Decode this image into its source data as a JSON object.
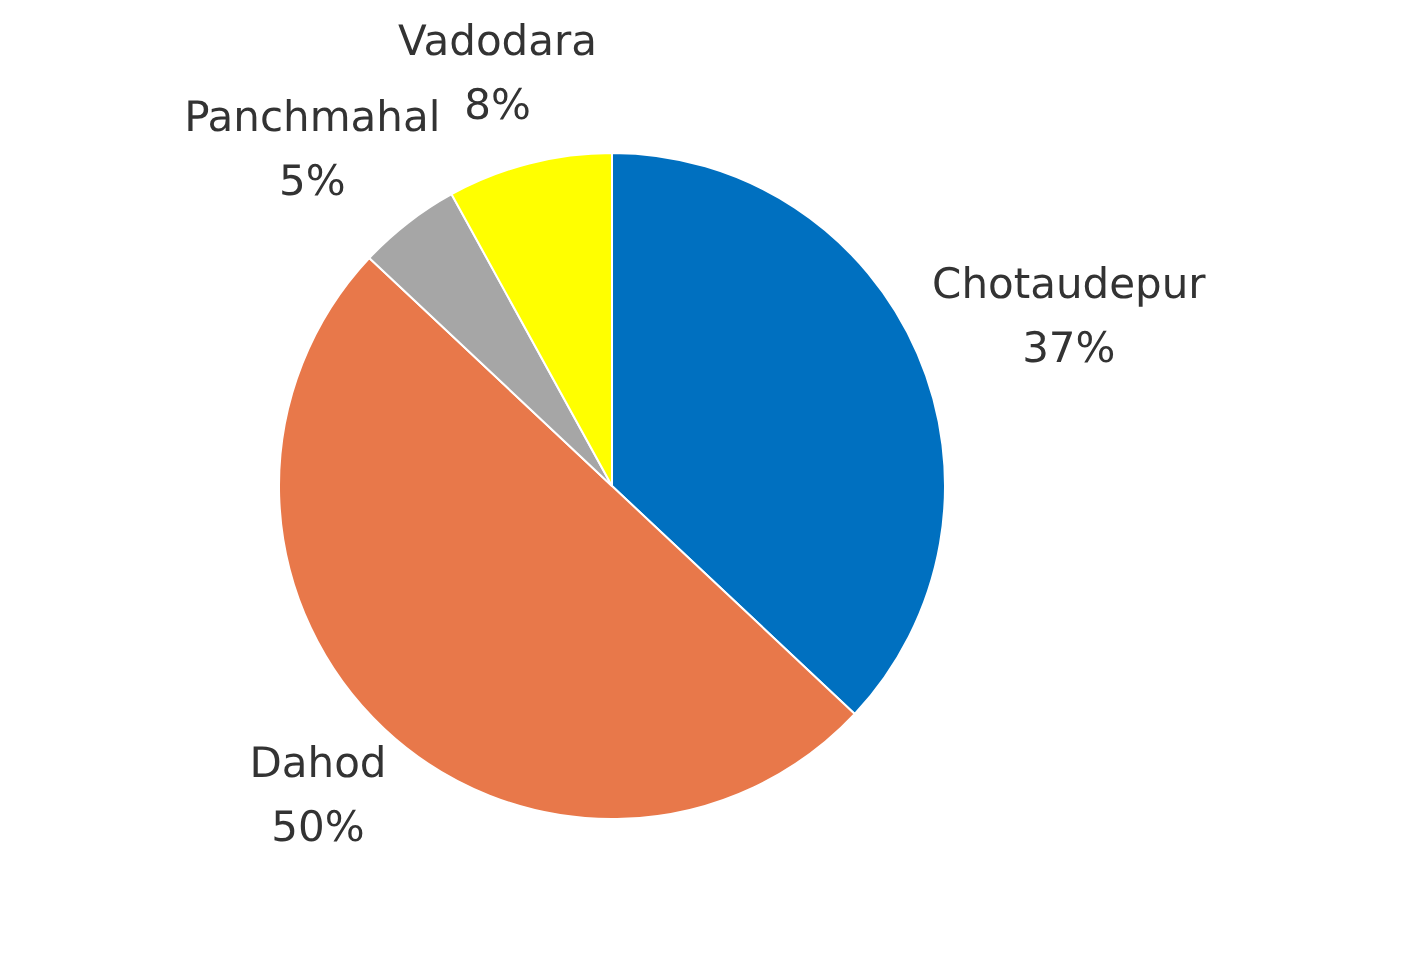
{
  "chart_data": {
    "type": "pie",
    "categories": [
      "Chotaudepur",
      "Dahod",
      "Panchmahal",
      "Vadodara"
    ],
    "values": [
      37,
      50,
      5,
      8
    ],
    "value_labels": [
      "37%",
      "50%",
      "5%",
      "8%"
    ],
    "colors": [
      "#0070c0",
      "#e8784a",
      "#a6a6a6",
      "#ffff00"
    ],
    "legend": false
  }
}
